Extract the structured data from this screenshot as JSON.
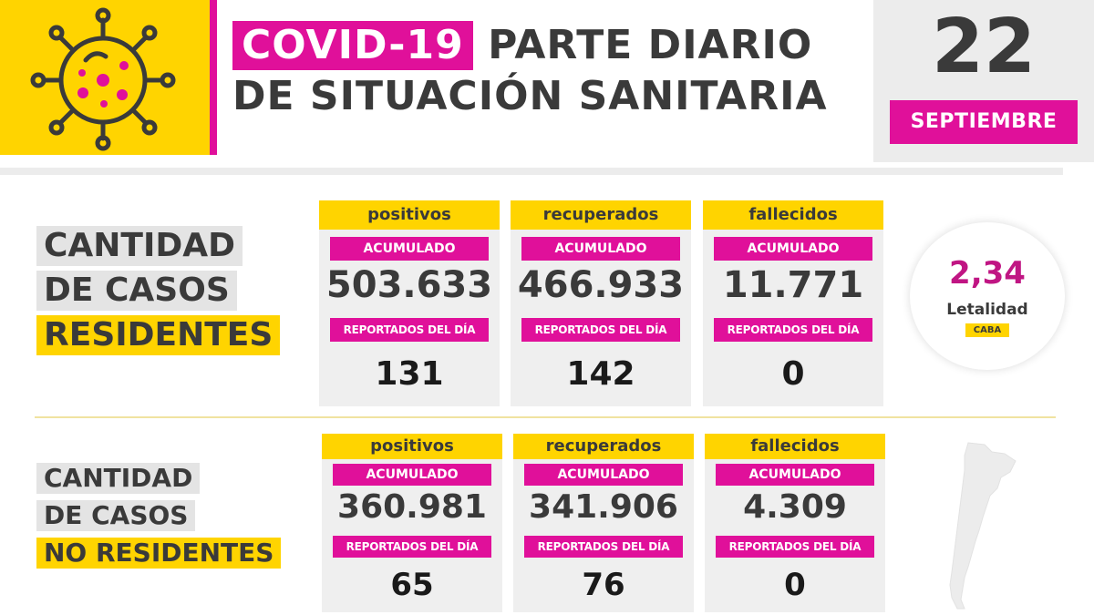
{
  "header": {
    "title_tag": "COVID-19",
    "title_line1": "PARTE DIARIO",
    "title_line2": "DE SITUACIÓN SANITARIA",
    "day": "22",
    "month": "SEPTIEMBRE"
  },
  "colors": {
    "accent_magenta": "#e0109a",
    "accent_yellow": "#ffd400",
    "card_gray": "#efefef"
  },
  "icons": {
    "logo": "virus-icon",
    "map": "argentina-map-icon"
  },
  "residentes": {
    "label_line1": "CANTIDAD",
    "label_line2": "DE CASOS",
    "label_line3": "RESIDENTES",
    "cards": [
      {
        "title": "positivos",
        "acumulado_label": "ACUMULADO",
        "acumulado": "503.633",
        "dia_label": "REPORTADOS DEL DÍA",
        "dia": "131"
      },
      {
        "title": "recuperados",
        "acumulado_label": "ACUMULADO",
        "acumulado": "466.933",
        "dia_label": "REPORTADOS DEL DÍA",
        "dia": "142"
      },
      {
        "title": "fallecidos",
        "acumulado_label": "ACUMULADO",
        "acumulado": "11.771",
        "dia_label": "REPORTADOS DEL DÍA",
        "dia": "0"
      }
    ]
  },
  "no_residentes": {
    "label_line1": "CANTIDAD",
    "label_line2": "DE CASOS",
    "label_line3": "NO RESIDENTES",
    "cards": [
      {
        "title": "positivos",
        "acumulado_label": "ACUMULADO",
        "acumulado": "360.981",
        "dia_label": "REPORTADOS DEL DÍA",
        "dia": "65"
      },
      {
        "title": "recuperados",
        "acumulado_label": "ACUMULADO",
        "acumulado": "341.906",
        "dia_label": "REPORTADOS DEL DÍA",
        "dia": "76"
      },
      {
        "title": "fallecidos",
        "acumulado_label": "ACUMULADO",
        "acumulado": "4.309",
        "dia_label": "REPORTADOS DEL DÍA",
        "dia": "0"
      }
    ]
  },
  "letalidad": {
    "value": "2,34",
    "label": "Letalidad",
    "tag": "CABA"
  }
}
